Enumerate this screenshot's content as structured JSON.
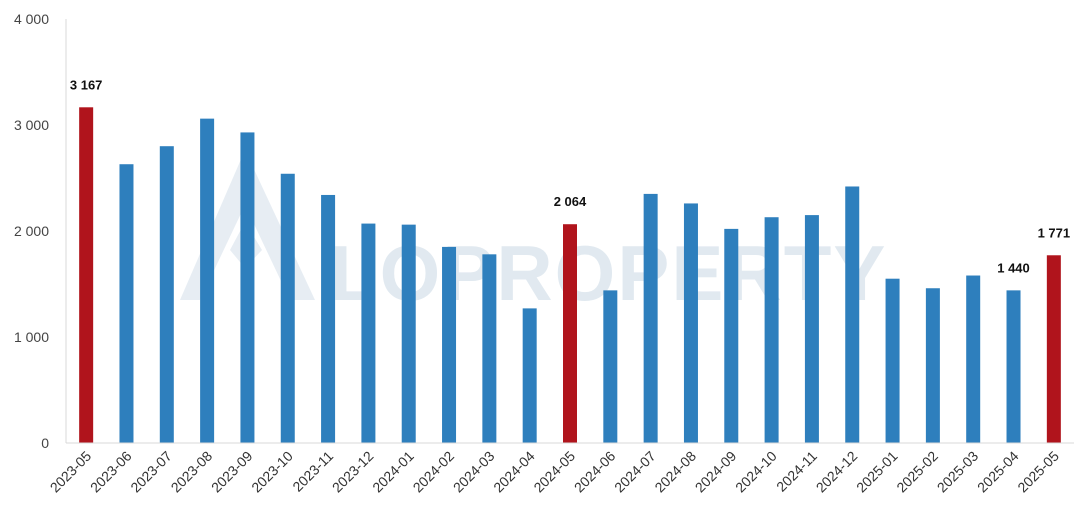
{
  "watermark": {
    "text": "LOPROPERTY"
  },
  "chart_data": {
    "type": "bar",
    "categories": [
      "2023-05",
      "2023-06",
      "2023-07",
      "2023-08",
      "2023-09",
      "2023-10",
      "2023-11",
      "2023-12",
      "2024-01",
      "2024-02",
      "2024-03",
      "2024-04",
      "2024-05",
      "2024-06",
      "2024-07",
      "2024-08",
      "2024-09",
      "2024-10",
      "2024-11",
      "2024-12",
      "2025-01",
      "2025-02",
      "2025-03",
      "2025-04",
      "2025-05"
    ],
    "values": [
      3167,
      2630,
      2800,
      3060,
      2930,
      2540,
      2340,
      2070,
      2060,
      1850,
      1780,
      1270,
      2064,
      1440,
      2350,
      2260,
      2020,
      2130,
      2150,
      2420,
      1550,
      1460,
      1580,
      1440,
      1771
    ],
    "highlighted": [
      0,
      12,
      24
    ],
    "data_labels": [
      {
        "index": 0,
        "text": "3 167"
      },
      {
        "index": 12,
        "text": "2 064"
      },
      {
        "index": 23,
        "text": "1 440"
      },
      {
        "index": 24,
        "text": "1 771"
      }
    ],
    "y_ticks": [
      0,
      1000,
      2000,
      3000,
      4000
    ],
    "y_tick_labels": [
      "0",
      "1 000",
      "2 000",
      "3 000",
      "4 000"
    ],
    "ylim": [
      0,
      4000
    ],
    "grid": false,
    "colors": {
      "bar": "#2e7fbd",
      "highlight": "#b0141c",
      "axis": "#d9d9d9"
    }
  }
}
